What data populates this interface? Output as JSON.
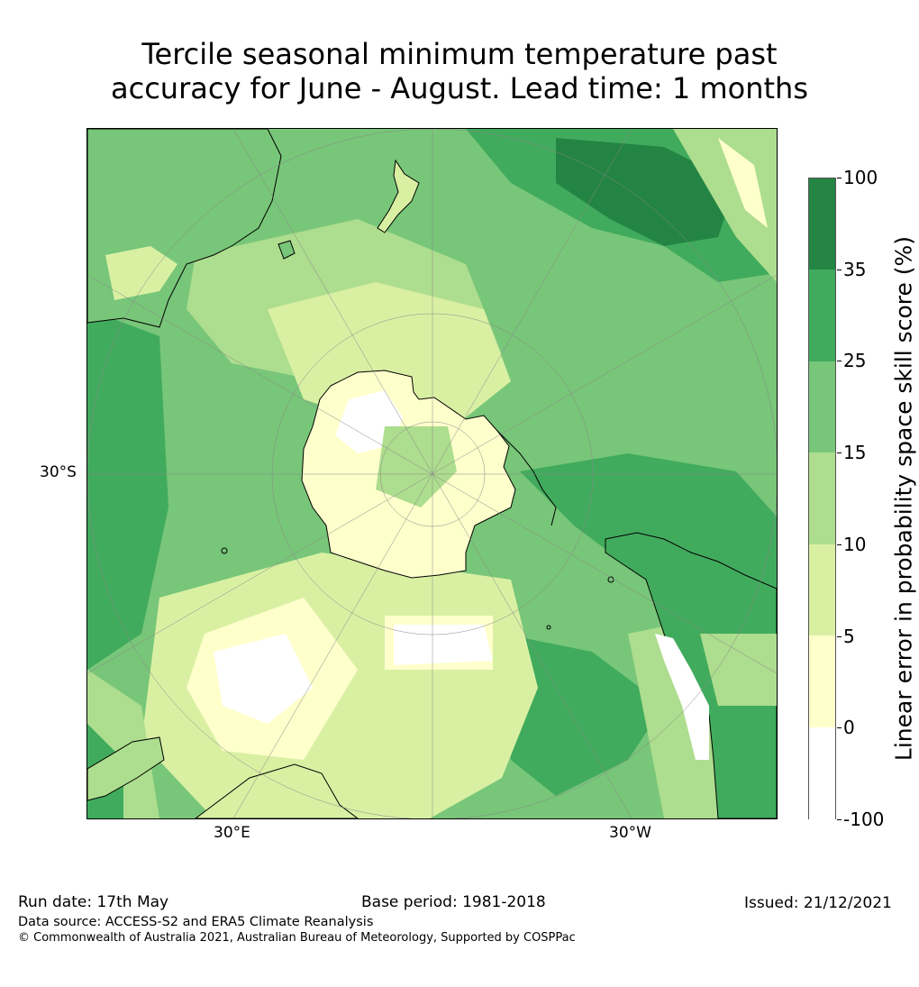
{
  "title": {
    "line1": "Tercile seasonal minimum temperature past",
    "line2": "accuracy for June - August. Lead time: 1 months"
  },
  "map": {
    "projection": "south-polar-stereographic",
    "axis_labels": {
      "left": "30°S",
      "bottom_left": "30°E",
      "bottom_right": "30°W"
    },
    "colors": {
      "c_neg": "#ffffff",
      "c0": "#ffffcc",
      "c5": "#d9f0a3",
      "c10": "#addd8e",
      "c15": "#78c679",
      "c25": "#41ab5d",
      "c35": "#238443",
      "coast": "#000000",
      "grid": "#888888"
    }
  },
  "colorbar": {
    "title": "Linear error in probability space skill score (%)",
    "ticks": [
      "100",
      "35",
      "25",
      "15",
      "10",
      "5",
      "0",
      "-100"
    ],
    "bins": [
      {
        "from": 35,
        "to": 100,
        "color": "#238443"
      },
      {
        "from": 25,
        "to": 35,
        "color": "#41ab5d"
      },
      {
        "from": 15,
        "to": 25,
        "color": "#78c679"
      },
      {
        "from": 10,
        "to": 15,
        "color": "#addd8e"
      },
      {
        "from": 5,
        "to": 10,
        "color": "#d9f0a3"
      },
      {
        "from": 0,
        "to": 5,
        "color": "#ffffcc"
      },
      {
        "from": -100,
        "to": 0,
        "color": "#ffffff"
      }
    ]
  },
  "footer": {
    "run_date": "Run date: 17th May",
    "base_period": "Base period: 1981-2018",
    "issued": "Issued: 21/12/2021",
    "data_source": "Data source: ACCESS-S2 and ERA5 Climate Reanalysis",
    "copyright": "© Commonwealth of Australia 2021, Australian Bureau of Meteorology, Supported by COSPPac"
  }
}
